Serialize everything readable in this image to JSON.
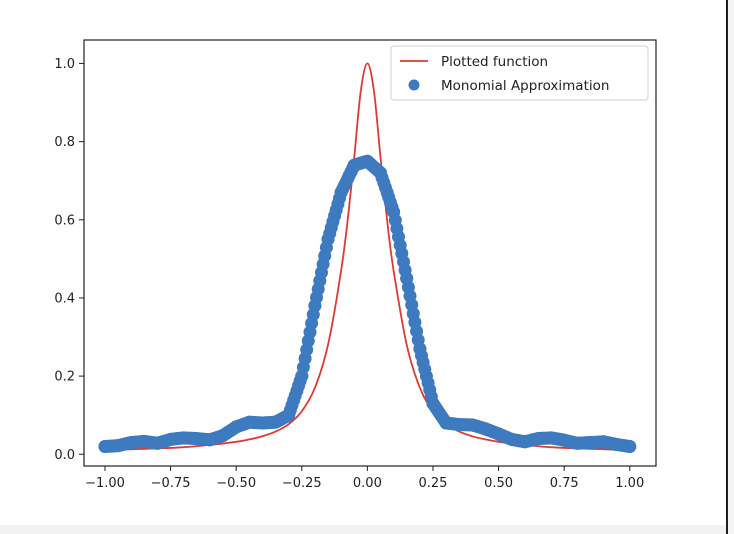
{
  "chart_data": {
    "type": "line",
    "title": "",
    "xlabel": "",
    "ylabel": "",
    "xlim": [
      -1.08,
      1.1
    ],
    "ylim": [
      -0.03,
      1.06
    ],
    "x_ticks": [
      -1.0,
      -0.75,
      -0.5,
      -0.25,
      0.0,
      0.25,
      0.5,
      0.75,
      1.0
    ],
    "x_tick_labels": [
      "−1.00",
      "−0.75",
      "−0.50",
      "−0.25",
      "0.00",
      "0.25",
      "0.50",
      "0.75",
      "1.00"
    ],
    "y_ticks": [
      0.0,
      0.2,
      0.4,
      0.6,
      0.8,
      1.0
    ],
    "y_tick_labels": [
      "0.0",
      "0.2",
      "0.4",
      "0.6",
      "0.8",
      "1.0"
    ],
    "grid": false,
    "legend_position": "top-right",
    "series": [
      {
        "name": "Plotted function",
        "kind": "line",
        "color": "#e03a30",
        "x": [
          -1.0,
          -0.9,
          -0.8,
          -0.7,
          -0.6,
          -0.5,
          -0.45,
          -0.4,
          -0.35,
          -0.3,
          -0.25,
          -0.2,
          -0.15,
          -0.1,
          -0.075,
          -0.05,
          -0.025,
          0.0,
          0.025,
          0.05,
          0.075,
          0.1,
          0.15,
          0.2,
          0.25,
          0.3,
          0.35,
          0.4,
          0.45,
          0.5,
          0.6,
          0.7,
          0.8,
          0.9,
          1.0
        ],
        "y": [
          0.01,
          0.013,
          0.015,
          0.018,
          0.024,
          0.032,
          0.038,
          0.046,
          0.058,
          0.077,
          0.11,
          0.17,
          0.28,
          0.47,
          0.6,
          0.76,
          0.93,
          1.0,
          0.93,
          0.76,
          0.6,
          0.47,
          0.28,
          0.17,
          0.11,
          0.077,
          0.058,
          0.046,
          0.038,
          0.032,
          0.024,
          0.018,
          0.015,
          0.013,
          0.01
        ]
      },
      {
        "name": "Monomial Approximation",
        "kind": "scatter",
        "color": "#3d7abf",
        "x": [
          -1.0,
          -0.95,
          -0.9,
          -0.85,
          -0.8,
          -0.75,
          -0.7,
          -0.65,
          -0.6,
          -0.55,
          -0.5,
          -0.45,
          -0.4,
          -0.35,
          -0.3,
          -0.25,
          -0.2,
          -0.15,
          -0.1,
          -0.05,
          0.0,
          0.05,
          0.1,
          0.15,
          0.2,
          0.25,
          0.3,
          0.35,
          0.4,
          0.45,
          0.5,
          0.55,
          0.6,
          0.65,
          0.7,
          0.75,
          0.8,
          0.85,
          0.9,
          0.95,
          1.0
        ],
        "y": [
          0.02,
          0.022,
          0.03,
          0.033,
          0.028,
          0.038,
          0.042,
          0.04,
          0.037,
          0.048,
          0.07,
          0.082,
          0.08,
          0.082,
          0.1,
          0.2,
          0.38,
          0.55,
          0.67,
          0.74,
          0.75,
          0.72,
          0.62,
          0.45,
          0.27,
          0.13,
          0.08,
          0.076,
          0.075,
          0.065,
          0.052,
          0.038,
          0.032,
          0.04,
          0.042,
          0.036,
          0.028,
          0.03,
          0.032,
          0.025,
          0.02
        ]
      }
    ]
  }
}
